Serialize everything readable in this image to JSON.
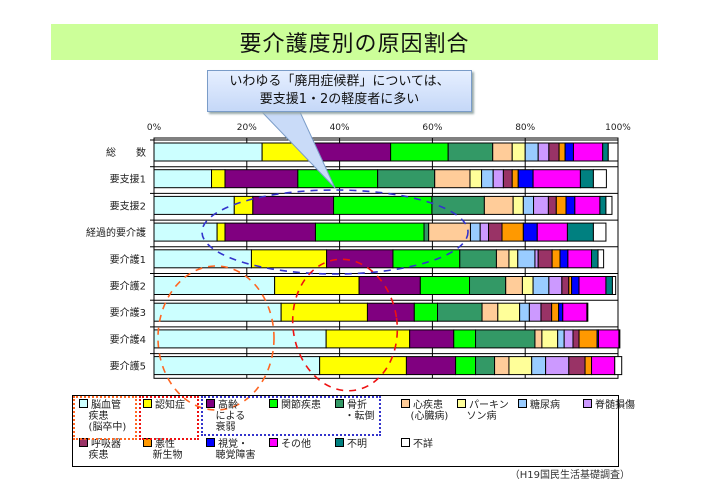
{
  "title": "要介護度別の原因割合",
  "callout": {
    "line1": "いわゆる「廃用症候群」については、",
    "line2": "要支援1・2の軽度者に多い"
  },
  "source": "（H19国民生活基礎調査）",
  "chart_data": {
    "type": "bar",
    "orientation": "horizontal",
    "stacked": "100%",
    "title": "要介護度別の原因割合",
    "xlabel": "",
    "ylabel": "",
    "xlim": [
      0,
      100
    ],
    "x_ticks": [
      "0%",
      "20%",
      "40%",
      "60%",
      "80%",
      "100%"
    ],
    "categories": [
      "総　　数",
      "要支援1",
      "要支援2",
      "経過的要介護",
      "要介護1",
      "要介護2",
      "要介護3",
      "要介護4",
      "要介護5"
    ],
    "series": [
      {
        "name": "脳血管疾患（脳卒中）",
        "color": "#ccffff",
        "values": [
          23.3,
          12.4,
          17.3,
          13.6,
          21.0,
          26.0,
          27.4,
          37.1,
          35.7
        ]
      },
      {
        "name": "認知症",
        "color": "#ffff00",
        "values": [
          10.4,
          2.9,
          4.0,
          1.7,
          16.2,
          18.2,
          18.6,
          18.0,
          18.7
        ]
      },
      {
        "name": "高齢による衰弱",
        "color": "#800080",
        "values": [
          17.3,
          15.7,
          17.4,
          19.5,
          14.3,
          13.2,
          10.1,
          9.5,
          10.6
        ]
      },
      {
        "name": "関節疾患",
        "color": "#00ff00",
        "values": [
          12.4,
          17.2,
          21.2,
          23.4,
          14.4,
          10.6,
          5.0,
          4.7,
          4.3
        ]
      },
      {
        "name": "骨折・転倒",
        "color": "#339966",
        "values": [
          9.6,
          12.3,
          11.3,
          1.0,
          7.9,
          7.8,
          9.6,
          12.8,
          4.1
        ]
      },
      {
        "name": "心疾患（心臓病）",
        "color": "#ffcc99",
        "values": [
          4.2,
          7.6,
          6.2,
          9.0,
          2.7,
          3.6,
          3.4,
          1.5,
          3.1
        ]
      },
      {
        "name": "パーキンソン病",
        "color": "#ffff99",
        "values": [
          2.8,
          2.5,
          2.2,
          0,
          1.9,
          2.3,
          4.7,
          3.4,
          4.9
        ]
      },
      {
        "name": "糖尿病",
        "color": "#99ccff",
        "values": [
          2.8,
          2.5,
          2.2,
          2.1,
          3.7,
          3.4,
          2.1,
          1.4,
          3.0
        ]
      },
      {
        "name": "脊髄損傷",
        "color": "#cc99ff",
        "values": [
          2.3,
          2.2,
          3.2,
          1.8,
          0.7,
          2.8,
          2.5,
          1.9,
          5.0
        ]
      },
      {
        "name": "呼吸器疾患",
        "color": "#993366",
        "values": [
          2.2,
          1.9,
          1.7,
          2.9,
          3.0,
          1.5,
          2.3,
          1.3,
          3.5
        ]
      },
      {
        "name": "悪性新生物（がん）",
        "color": "#ff9900",
        "values": [
          1.3,
          1.3,
          2.1,
          4.6,
          1.7,
          0.6,
          1.5,
          3.9,
          1.4
        ]
      },
      {
        "name": "視覚・聴覚障害",
        "color": "#0000ff",
        "values": [
          1.8,
          3.2,
          1.9,
          3.0,
          1.7,
          1.6,
          0.9,
          0.3,
          0
        ]
      },
      {
        "name": "その他",
        "color": "#ff00ff",
        "values": [
          6.3,
          10.2,
          5.4,
          6.5,
          5.1,
          5.8,
          5.2,
          4.4,
          5.0
        ]
      },
      {
        "name": "不明",
        "color": "#008080",
        "values": [
          1.2,
          2.8,
          1.3,
          5.6,
          1.4,
          1.4,
          0,
          0,
          0
        ]
      },
      {
        "name": "不詳",
        "color": "#ffffff",
        "values": [
          2.1,
          2.8,
          1.3,
          2.7,
          1.2,
          0.7,
          0.2,
          0.2,
          1.5
        ]
      }
    ],
    "annotations": [
      {
        "type": "dashed-ellipse",
        "color": "#3333cc",
        "target": "要支援1・要支援2・経過的要介護 の 高齢による衰弱"
      },
      {
        "type": "dashed-ellipse",
        "color": "#ff6622",
        "target": "要介護3〜5 の 脳血管疾患"
      },
      {
        "type": "dashed-ellipse",
        "color": "#ee1111",
        "target": "要介護3〜5 の 認知症"
      }
    ],
    "legend": "bottom",
    "grid": true
  },
  "legend_items": [
    {
      "label": "脳血管\n疾患\n(脳卒中)",
      "color": "#ccffff"
    },
    {
      "label": "認知症",
      "color": "#ffff00"
    },
    {
      "label": "高齢\nによる\n衰弱",
      "color": "#800080"
    },
    {
      "label": "関節疾患",
      "color": "#00ff00"
    },
    {
      "label": "骨折\n・転倒",
      "color": "#339966"
    },
    {
      "label": "心疾患\n(心臓病)",
      "color": "#ffcc99"
    },
    {
      "label": "パーキン\nソン病",
      "color": "#ffff99"
    },
    {
      "label": "糖尿病",
      "color": "#99ccff"
    },
    {
      "label": "脊髄損傷",
      "color": "#cc99ff"
    },
    {
      "label": "呼吸器\n疾患",
      "color": "#993366"
    },
    {
      "label": "悪性\n新生物",
      "color": "#ff9900"
    },
    {
      "label": "視覚・\n聴覚障害",
      "color": "#0000ff"
    },
    {
      "label": "その他",
      "color": "#ff00ff"
    },
    {
      "label": "不明",
      "color": "#008080"
    },
    {
      "label": "不詳",
      "color": "#ffffff"
    }
  ]
}
